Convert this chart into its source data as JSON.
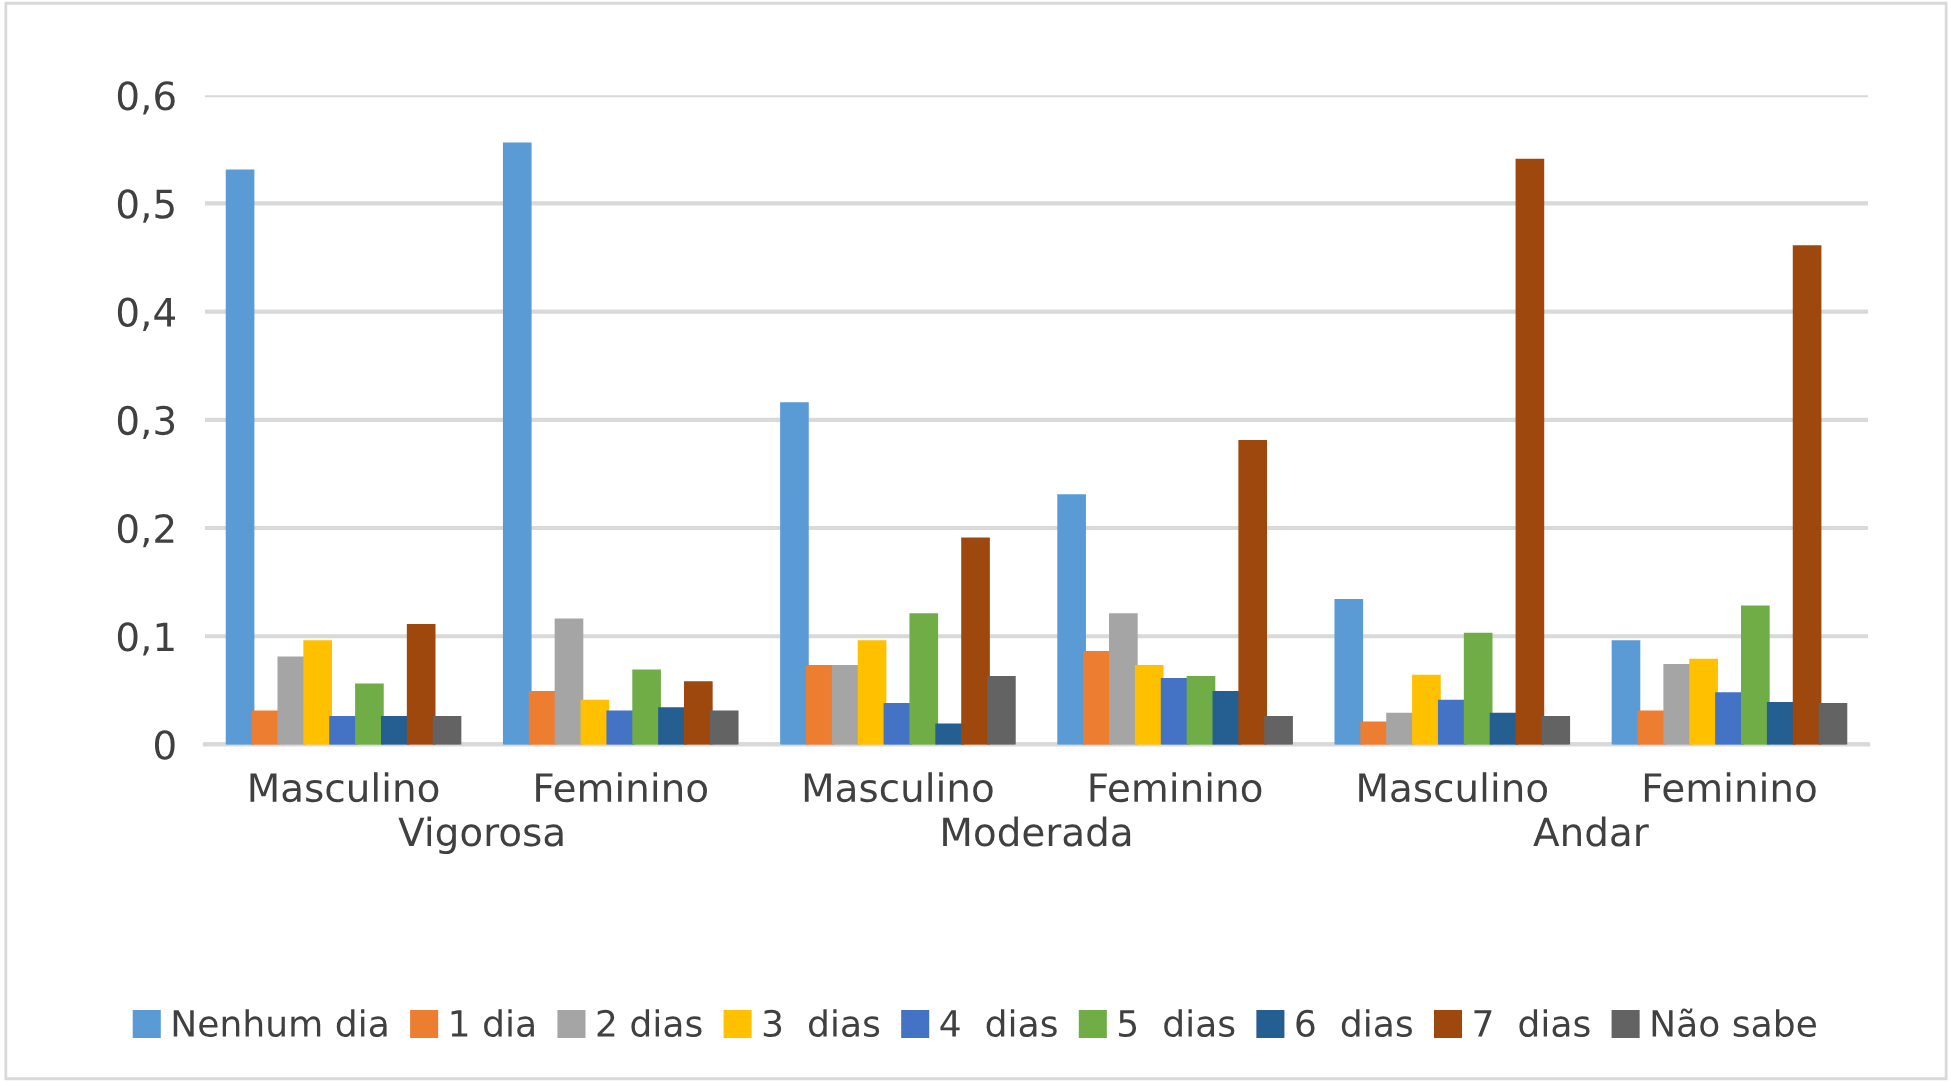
{
  "chart_data": {
    "type": "bar",
    "categories": [
      "Masculino",
      "Feminino",
      "Masculino",
      "Feminino",
      "Masculino",
      "Feminino"
    ],
    "annotations": [
      "Vigorosa",
      "Moderada",
      "Andar"
    ],
    "series": [
      {
        "name": "Nenhum dia",
        "color": "#5b9bd5",
        "values": [
          0.53,
          0.555,
          0.315,
          0.23,
          0.133,
          0.095
        ]
      },
      {
        "name": "1 dia",
        "color": "#ed7d31",
        "values": [
          0.03,
          0.048,
          0.072,
          0.085,
          0.02,
          0.03
        ]
      },
      {
        "name": "2 dias",
        "color": "#a5a5a5",
        "values": [
          0.08,
          0.115,
          0.072,
          0.12,
          0.028,
          0.073
        ]
      },
      {
        "name": "3  dias",
        "color": "#ffc000",
        "values": [
          0.095,
          0.04,
          0.095,
          0.072,
          0.063,
          0.078
        ]
      },
      {
        "name": "4  dias",
        "color": "#4472c4",
        "values": [
          0.025,
          0.03,
          0.037,
          0.06,
          0.04,
          0.047
        ]
      },
      {
        "name": "5  dias",
        "color": "#70ad47",
        "values": [
          0.055,
          0.068,
          0.12,
          0.062,
          0.102,
          0.127
        ]
      },
      {
        "name": "6  dias",
        "color": "#255e91",
        "values": [
          0.025,
          0.033,
          0.018,
          0.048,
          0.028,
          0.038
        ]
      },
      {
        "name": "7  dias",
        "color": "#9e480e",
        "values": [
          0.11,
          0.057,
          0.19,
          0.28,
          0.54,
          0.46
        ]
      },
      {
        "name": "Não sabe",
        "color": "#636363",
        "values": [
          0.025,
          0.03,
          0.062,
          0.025,
          0.025,
          0.037
        ]
      }
    ],
    "ylim": [
      0,
      0.6
    ],
    "yticks": [
      0,
      {
        "value": 0.1,
        "label": "0,1"
      },
      {
        "value": 0.2,
        "label": "0,2"
      },
      {
        "value": 0.3,
        "label": "0,3"
      },
      {
        "value": 0.4,
        "label": "0,4"
      },
      {
        "value": 0.5,
        "label": "0,5"
      },
      {
        "value": 0.6,
        "label": "0,6"
      }
    ],
    "grid": "y",
    "legend": "bottom"
  }
}
